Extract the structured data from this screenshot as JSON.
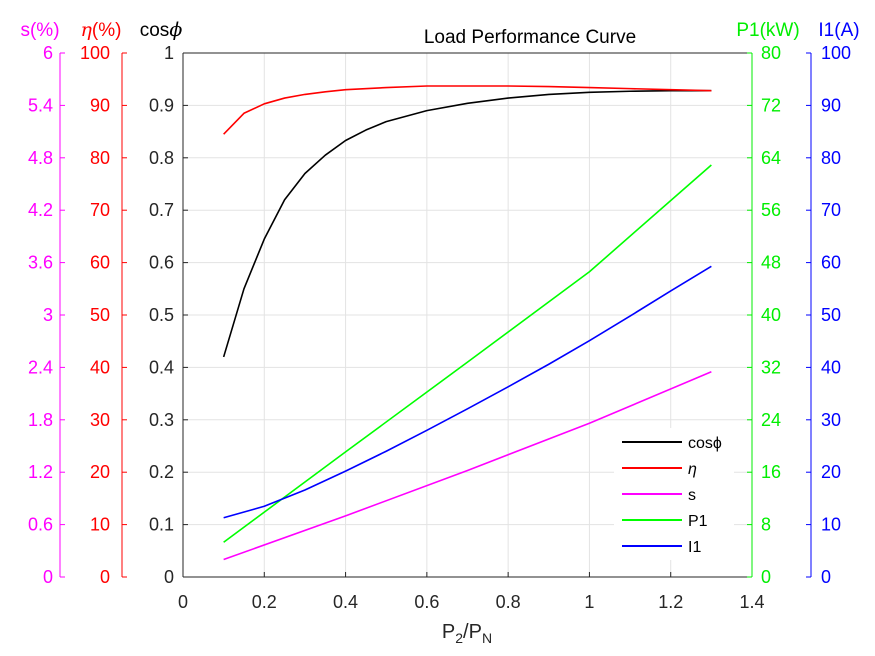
{
  "chart_data": {
    "type": "line",
    "title": "Load Performance Curve",
    "xlabel": {
      "base": "P",
      "sub1": "2",
      "mid": "/P",
      "sub2": "N"
    },
    "xlim": [
      0,
      1.4
    ],
    "xticks": [
      "0",
      "0.2",
      "0.4",
      "0.6",
      "0.8",
      "1",
      "1.2",
      "1.4"
    ],
    "grid": true,
    "legend_position": "bottom-right",
    "axes": {
      "s": {
        "label": "s(%)",
        "color": "#ff00ff",
        "range": [
          0,
          6
        ],
        "ticks": [
          "0",
          "0.6",
          "1.2",
          "1.8",
          "2.4",
          "3",
          "3.6",
          "4.2",
          "4.8",
          "5.4",
          "6"
        ]
      },
      "eta": {
        "label_symbol": "η",
        "label_rest": "(%)",
        "color": "#ff0000",
        "range": [
          0,
          100
        ],
        "ticks": [
          "0",
          "10",
          "20",
          "30",
          "40",
          "50",
          "60",
          "70",
          "80",
          "90",
          "100"
        ]
      },
      "cos": {
        "label_text": "cos",
        "label_symbol": "ϕ",
        "color": "#000000",
        "range": [
          0,
          1
        ],
        "ticks": [
          "0",
          "0.1",
          "0.2",
          "0.3",
          "0.4",
          "0.5",
          "0.6",
          "0.7",
          "0.8",
          "0.9",
          "1"
        ]
      },
      "p1": {
        "label": "P1(kW)",
        "color": "#00ff00",
        "range": [
          0,
          80
        ],
        "ticks": [
          "0",
          "8",
          "16",
          "24",
          "32",
          "40",
          "48",
          "56",
          "64",
          "72",
          "80"
        ]
      },
      "i1": {
        "label": "I1(A)",
        "color": "#0000ff",
        "range": [
          0,
          100
        ],
        "ticks": [
          "0",
          "10",
          "20",
          "30",
          "40",
          "50",
          "60",
          "70",
          "80",
          "90",
          "100"
        ]
      }
    },
    "series": [
      {
        "key": "cos",
        "name": "cosϕ",
        "color": "#000000",
        "x": [
          0.1,
          0.15,
          0.2,
          0.25,
          0.3,
          0.35,
          0.4,
          0.45,
          0.5,
          0.6,
          0.7,
          0.8,
          0.9,
          1.0,
          1.1,
          1.2,
          1.3
        ],
        "y": [
          0.42,
          0.55,
          0.645,
          0.72,
          0.77,
          0.805,
          0.833,
          0.853,
          0.869,
          0.89,
          0.904,
          0.914,
          0.921,
          0.925,
          0.927,
          0.928,
          0.928
        ]
      },
      {
        "key": "eta",
        "name": "η",
        "color": "#ff0000",
        "x": [
          0.1,
          0.15,
          0.2,
          0.25,
          0.3,
          0.35,
          0.4,
          0.5,
          0.6,
          0.7,
          0.8,
          0.9,
          1.0,
          1.1,
          1.2,
          1.3
        ],
        "y": [
          84.5,
          88.5,
          90.3,
          91.4,
          92.1,
          92.6,
          93.0,
          93.4,
          93.7,
          93.7,
          93.7,
          93.6,
          93.4,
          93.2,
          93.0,
          92.8
        ]
      },
      {
        "key": "s",
        "name": "s",
        "color": "#ff00ff",
        "x": [
          0.1,
          0.4,
          0.7,
          1.0,
          1.3
        ],
        "y": [
          0.2,
          0.7,
          1.22,
          1.76,
          2.35
        ]
      },
      {
        "key": "p1",
        "name": "P1",
        "color": "#00ff00",
        "x": [
          0.1,
          0.4,
          0.7,
          1.0,
          1.3
        ],
        "y": [
          5.3,
          19.1,
          32.8,
          46.6,
          62.9
        ]
      },
      {
        "key": "i1",
        "name": "I1",
        "color": "#0000ff",
        "x": [
          0.1,
          0.2,
          0.3,
          0.4,
          0.5,
          0.6,
          0.7,
          0.8,
          0.9,
          1.0,
          1.1,
          1.2,
          1.3
        ],
        "y": [
          11.3,
          13.5,
          16.6,
          20.2,
          24.0,
          28.0,
          32.1,
          36.3,
          40.6,
          45.1,
          49.8,
          54.6,
          59.3
        ]
      }
    ]
  }
}
